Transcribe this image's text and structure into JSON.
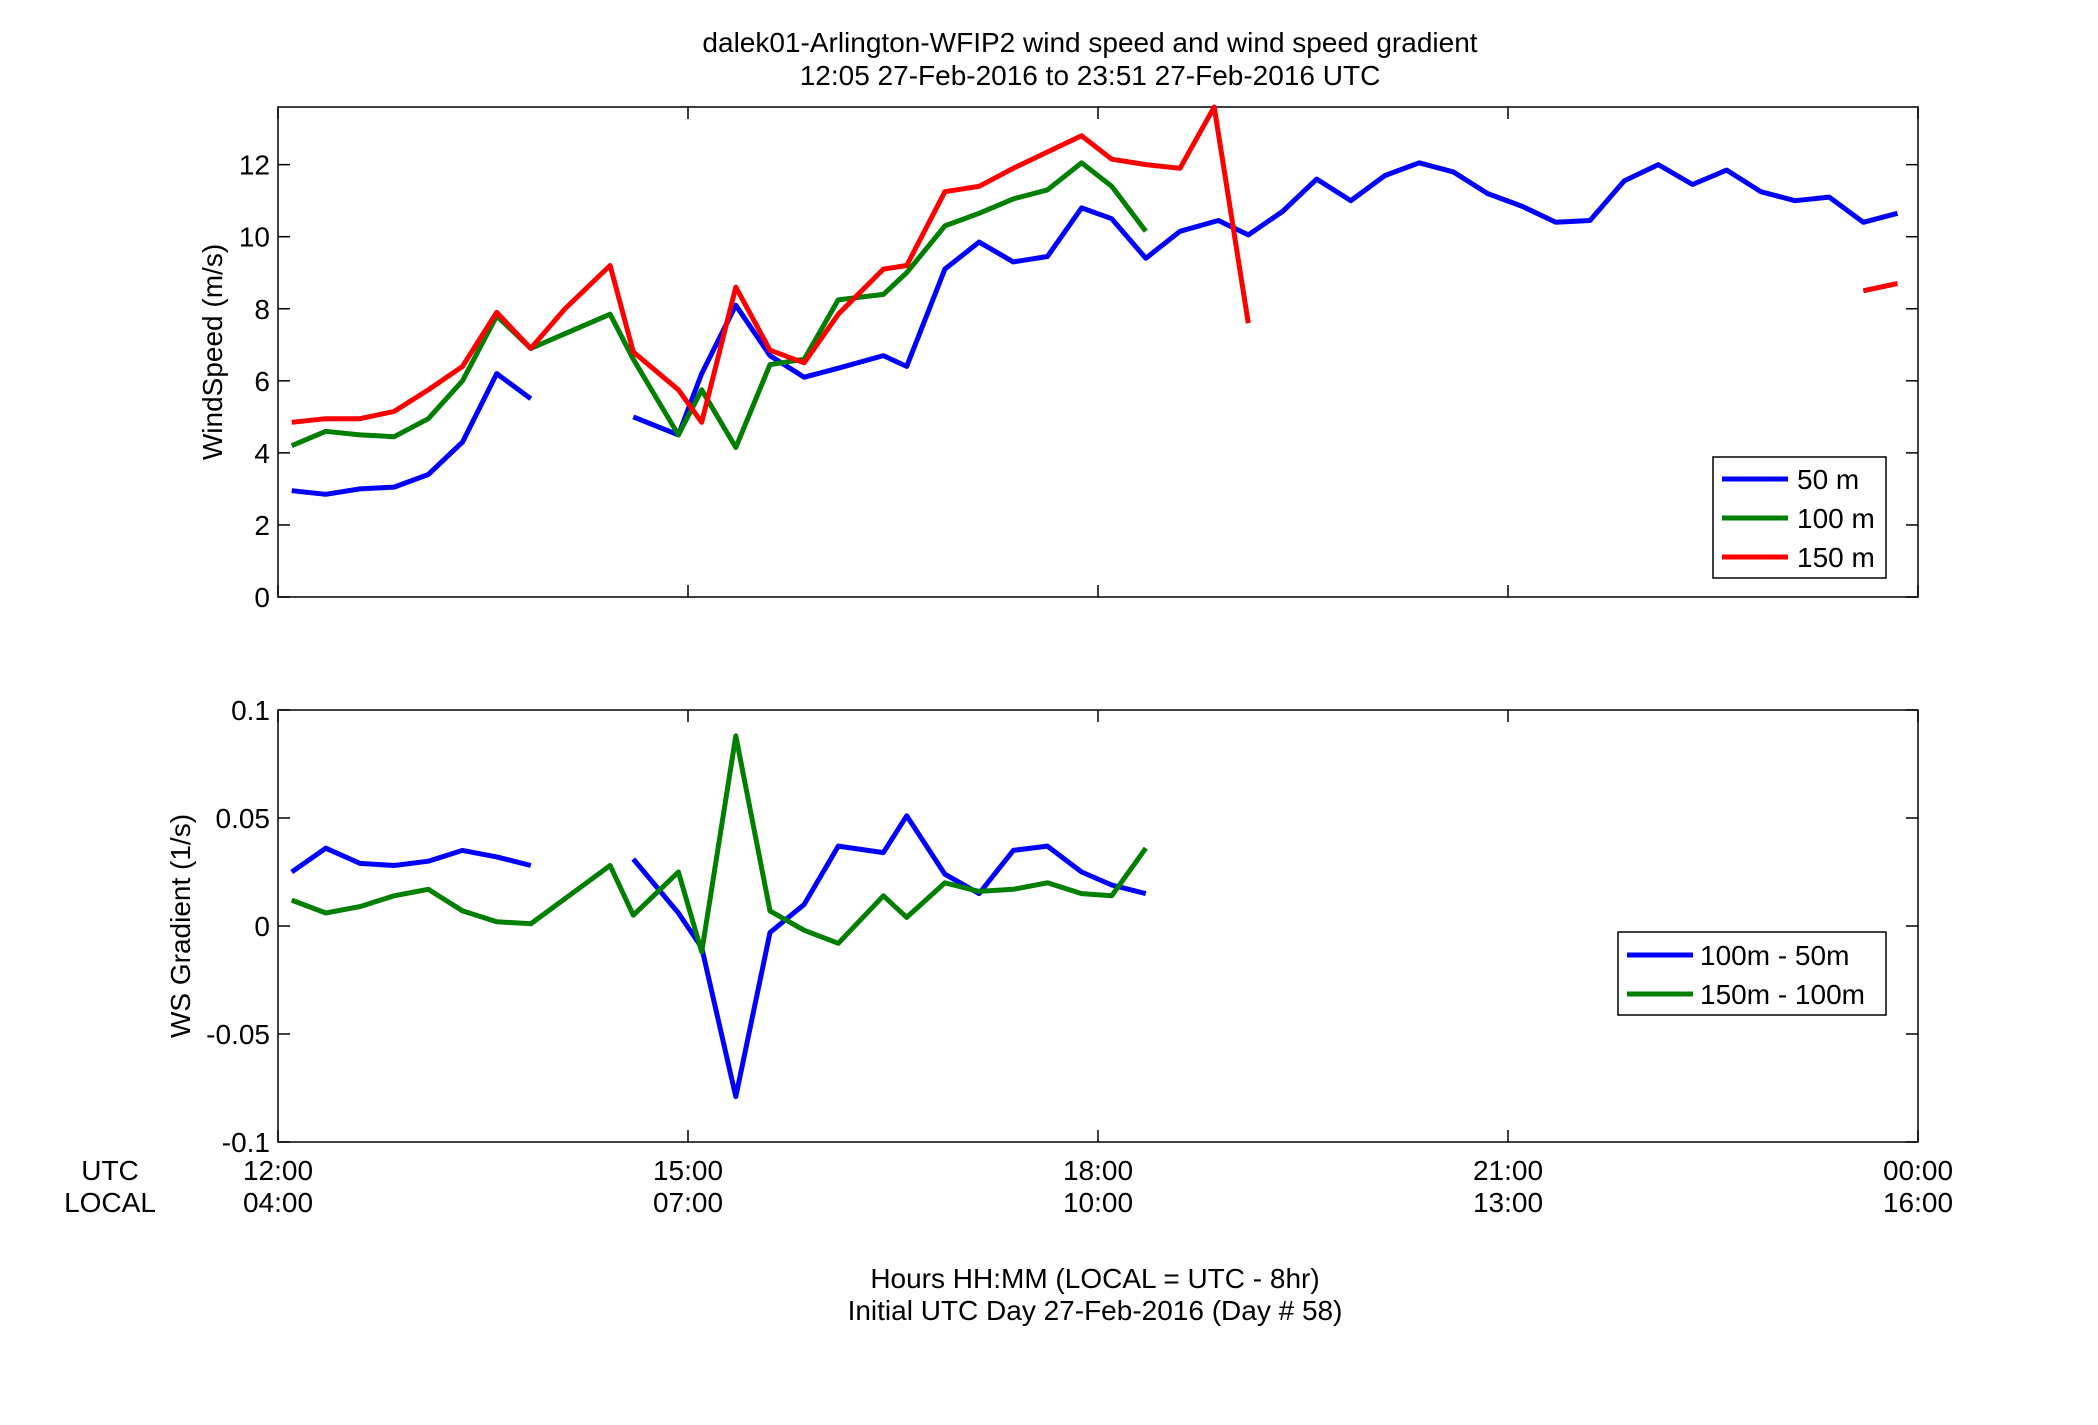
{
  "figure": {
    "title_line1": "dalek01-Arlington-WFIP2  wind speed and wind speed gradient",
    "title_line2": "12:05 27-Feb-2016 to 23:51 27-Feb-2016  UTC",
    "xlabel_line1": "Hours HH:MM  (LOCAL = UTC - 8hr)",
    "xlabel_line2": "Initial UTC Day 27-Feb-2016 (Day # 58)",
    "row_label_utc": "UTC",
    "row_label_local": "LOCAL",
    "utc_ticks": [
      "12:00",
      "15:00",
      "18:00",
      "21:00",
      "00:00"
    ],
    "local_ticks": [
      "04:00",
      "07:00",
      "10:00",
      "13:00",
      "16:00"
    ]
  },
  "chart_data": [
    {
      "type": "line",
      "ylabel": "WindSpeed (m/s)",
      "xlim": [
        12.0,
        24.0
      ],
      "ylim": [
        0,
        13.6
      ],
      "yticks": [
        0,
        2,
        4,
        6,
        8,
        10,
        12
      ],
      "ytick_labels": [
        "0",
        "2",
        "4",
        "6",
        "8",
        "10",
        "12"
      ],
      "grid": false,
      "legend_position": "bottom-right",
      "series": [
        {
          "name": "50 m",
          "color": "#0000ff",
          "x": [
            12.1,
            12.35,
            12.6,
            12.85,
            13.1,
            13.35,
            13.6,
            13.85,
            null,
            14.6,
            14.93,
            15.1,
            15.35,
            15.6,
            15.85,
            16.1,
            16.43,
            16.6,
            16.88,
            17.13,
            17.38,
            17.63,
            17.88,
            18.1,
            18.35,
            18.6,
            18.88,
            19.1,
            19.35,
            19.6,
            19.85,
            20.1,
            20.35,
            20.6,
            20.85,
            21.1,
            21.35,
            21.6,
            21.85,
            22.1,
            22.35,
            22.6,
            22.85,
            23.1,
            23.35,
            23.6,
            23.85
          ],
          "y": [
            2.95,
            2.85,
            3.0,
            3.05,
            3.4,
            4.3,
            6.2,
            5.5,
            null,
            5.0,
            4.5,
            6.2,
            8.1,
            6.7,
            6.1,
            6.35,
            6.7,
            6.4,
            9.1,
            9.85,
            9.3,
            9.45,
            10.8,
            10.5,
            9.4,
            10.15,
            10.45,
            10.05,
            10.7,
            11.6,
            11.0,
            11.7,
            12.05,
            11.8,
            11.2,
            10.85,
            10.4,
            10.45,
            11.55,
            12.0,
            11.45,
            11.85,
            11.25,
            11.0,
            11.1,
            10.4,
            10.65
          ]
        },
        {
          "name": "100 m",
          "color": "#007f00",
          "x": [
            12.1,
            12.35,
            12.6,
            12.85,
            13.1,
            13.35,
            13.6,
            13.85,
            14.43,
            14.6,
            14.93,
            15.1,
            15.35,
            15.6,
            15.85,
            16.1,
            16.43,
            16.6,
            16.88,
            17.13,
            17.38,
            17.63,
            17.88,
            18.1,
            18.35
          ],
          "y": [
            4.2,
            4.6,
            4.5,
            4.45,
            4.95,
            6.0,
            7.8,
            6.9,
            7.85,
            6.6,
            4.5,
            5.75,
            4.15,
            6.45,
            6.6,
            8.25,
            8.4,
            9.0,
            10.3,
            10.65,
            11.05,
            11.3,
            12.05,
            11.4,
            10.15
          ]
        },
        {
          "name": "150 m",
          "color": "#ff0000",
          "x": [
            12.1,
            12.35,
            12.6,
            12.85,
            13.1,
            13.35,
            13.6,
            13.85,
            14.1,
            14.43,
            14.6,
            14.93,
            15.1,
            15.35,
            15.6,
            15.85,
            16.1,
            16.43,
            16.6,
            16.88,
            17.13,
            17.38,
            17.63,
            17.88,
            18.1,
            18.35,
            18.6,
            18.85,
            19.1,
            null,
            23.6,
            23.85
          ],
          "y": [
            4.85,
            4.95,
            4.95,
            5.15,
            5.75,
            6.4,
            7.9,
            6.9,
            8.0,
            9.2,
            6.8,
            5.75,
            4.85,
            8.6,
            6.85,
            6.5,
            7.85,
            9.1,
            9.2,
            11.25,
            11.4,
            11.9,
            12.35,
            12.8,
            12.15,
            12.0,
            11.9,
            13.6,
            7.6,
            null,
            8.5,
            8.7
          ]
        }
      ]
    },
    {
      "type": "line",
      "ylabel": "WS Gradient (1/s)",
      "xlim": [
        12.0,
        24.0
      ],
      "ylim": [
        -0.1,
        0.1
      ],
      "yticks": [
        -0.1,
        -0.05,
        0,
        0.05,
        0.1
      ],
      "ytick_labels": [
        "-0.1",
        "-0.05",
        "0",
        "0.05",
        "0.1"
      ],
      "grid": false,
      "legend_position": "middle-right",
      "series": [
        {
          "name": "100m - 50m",
          "color": "#0000ff",
          "x": [
            12.1,
            12.35,
            12.6,
            12.85,
            13.1,
            13.35,
            13.6,
            13.85,
            null,
            14.6,
            14.93,
            15.1,
            15.35,
            15.6,
            15.85,
            16.1,
            16.43,
            16.6,
            16.88,
            17.13,
            17.38,
            17.63,
            17.88,
            18.1,
            18.35
          ],
          "y": [
            0.025,
            0.036,
            0.029,
            0.028,
            0.03,
            0.035,
            0.032,
            0.028,
            null,
            0.031,
            0.006,
            -0.01,
            -0.079,
            -0.003,
            0.01,
            0.037,
            0.034,
            0.051,
            0.024,
            0.015,
            0.035,
            0.037,
            0.025,
            0.019,
            0.015
          ]
        },
        {
          "name": "150m - 100m",
          "color": "#007f00",
          "x": [
            12.1,
            12.35,
            12.6,
            12.85,
            13.1,
            13.35,
            13.6,
            13.85,
            14.43,
            14.6,
            14.93,
            15.1,
            15.35,
            15.6,
            15.85,
            16.1,
            16.43,
            16.6,
            16.88,
            17.13,
            17.38,
            17.63,
            17.88,
            18.1,
            18.35
          ],
          "y": [
            0.012,
            0.006,
            0.009,
            0.014,
            0.017,
            0.007,
            0.002,
            0.001,
            0.028,
            0.005,
            0.025,
            -0.012,
            0.088,
            0.007,
            -0.002,
            -0.008,
            0.014,
            0.004,
            0.02,
            0.016,
            0.017,
            0.02,
            0.015,
            0.014,
            0.036
          ]
        }
      ]
    }
  ]
}
